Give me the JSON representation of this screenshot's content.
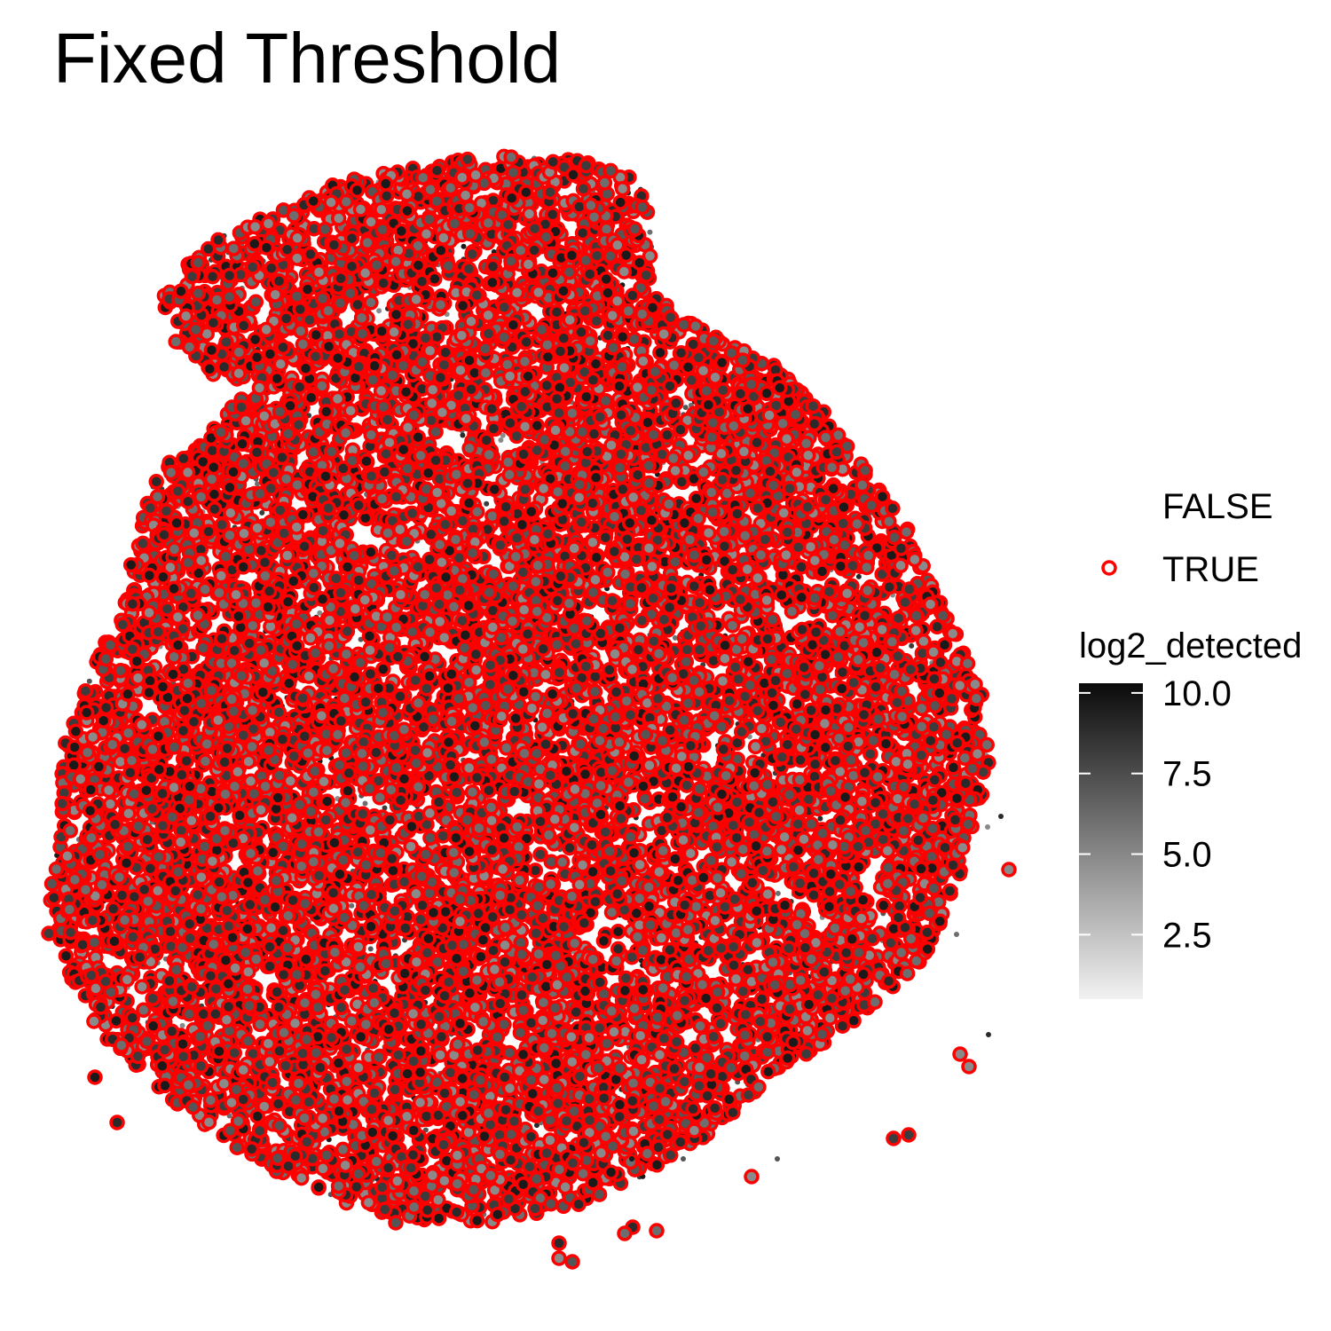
{
  "chart_data": {
    "type": "scatter",
    "title": "Fixed Threshold",
    "xlabel": "",
    "ylabel": "",
    "axes_visible": false,
    "grid": false,
    "point_count_note": "",
    "outline_legend": {
      "title": "",
      "entries": [
        {
          "label": "FALSE",
          "outline": "none"
        },
        {
          "label": "TRUE",
          "outline": "#ff0000"
        }
      ]
    },
    "fill_legend": {
      "title": "log2_detected",
      "min": 0.5,
      "max": 10.3,
      "breaks": [
        2.5,
        5.0,
        7.5,
        10.0
      ],
      "labels": [
        "2.5",
        "5.0",
        "7.5",
        "10.0"
      ],
      "low_color": "#f2f2f2",
      "high_color": "#0a0a0a"
    },
    "colors": {
      "flagged_outline": "#ff0000",
      "background": "#ffffff"
    },
    "legend_position": "right"
  }
}
